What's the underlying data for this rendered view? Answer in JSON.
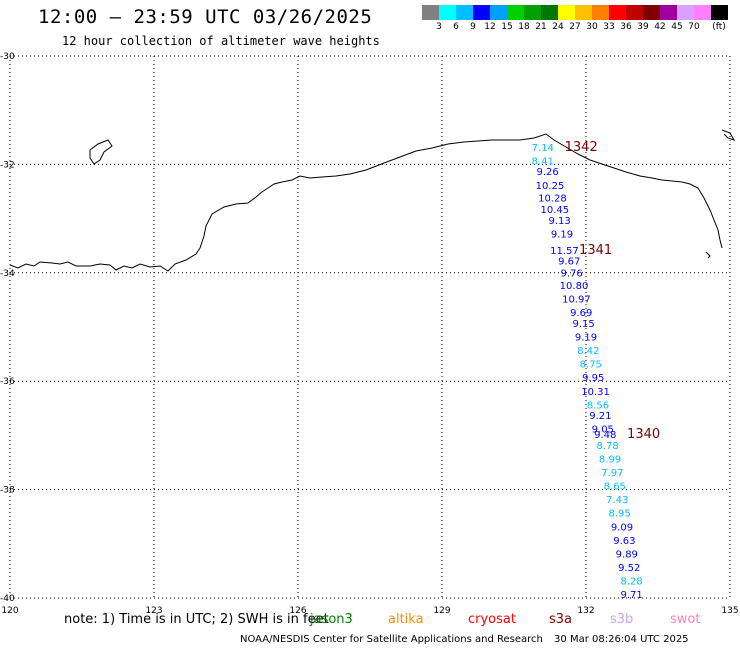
{
  "title": "12:00 – 23:59 UTC 03/26/2025",
  "subtitle": "12 hour collection of altimeter wave heights",
  "color_scale": {
    "labels": [
      "3",
      "6",
      "9",
      "12",
      "15",
      "18",
      "21",
      "24",
      "27",
      "30",
      "33",
      "36",
      "39",
      "42",
      "45",
      "70"
    ],
    "unit": "(ft)",
    "colors": [
      "#808080",
      "#00ffff",
      "#00bfff",
      "#0000ff",
      "#00a0ff",
      "#00d000",
      "#00a000",
      "#007800",
      "#ffff00",
      "#ffc000",
      "#ff8000",
      "#ff0000",
      "#c00000",
      "#800000",
      "#a000a0",
      "#d8a0ff",
      "#ff80ff",
      "#000000"
    ]
  },
  "map": {
    "lon_range": [
      120,
      135
    ],
    "lat_range": [
      -40,
      -30
    ],
    "lon_ticks": [
      "120",
      "123",
      "126",
      "129",
      "132",
      "135"
    ],
    "lat_ticks": [
      "-30",
      "-32",
      "-34",
      "-36",
      "-38",
      "-40"
    ],
    "grid": "dotted"
  },
  "passes": [
    {
      "id": "1342",
      "lon": 131.9,
      "lat": -31.75
    },
    {
      "id": "1341",
      "lon": 132.2,
      "lat": -33.65
    },
    {
      "id": "1340",
      "lon": 133.2,
      "lat": -37.05
    }
  ],
  "swh_points": [
    {
      "value": "7.14",
      "lon": 131.1,
      "lat": -31.75,
      "color": "#00bfff"
    },
    {
      "value": "8.41",
      "lon": 131.1,
      "lat": -32.0,
      "color": "#00bfff"
    },
    {
      "value": "9.26",
      "lon": 131.2,
      "lat": -32.2,
      "color": "#0000ff"
    },
    {
      "value": "10.25",
      "lon": 131.25,
      "lat": -32.45,
      "color": "#0000ff"
    },
    {
      "value": "10.28",
      "lon": 131.3,
      "lat": -32.68,
      "color": "#0000ff"
    },
    {
      "value": "10.45",
      "lon": 131.35,
      "lat": -32.9,
      "color": "#0000ff"
    },
    {
      "value": "9.13",
      "lon": 131.45,
      "lat": -33.1,
      "color": "#0000ff"
    },
    {
      "value": "9.19",
      "lon": 131.5,
      "lat": -33.35,
      "color": "#0000ff"
    },
    {
      "value": "11.57",
      "lon": 131.55,
      "lat": -33.65,
      "color": "#0000ff"
    },
    {
      "value": "9.67",
      "lon": 131.65,
      "lat": -33.85,
      "color": "#0000ff"
    },
    {
      "value": "9.76",
      "lon": 131.7,
      "lat": -34.07,
      "color": "#0000ff"
    },
    {
      "value": "10.80",
      "lon": 131.75,
      "lat": -34.3,
      "color": "#0000ff"
    },
    {
      "value": "10.97",
      "lon": 131.8,
      "lat": -34.55,
      "color": "#0000ff"
    },
    {
      "value": "9.69",
      "lon": 131.9,
      "lat": -34.8,
      "color": "#0000ff"
    },
    {
      "value": "9.15",
      "lon": 131.95,
      "lat": -35.0,
      "color": "#0000ff"
    },
    {
      "value": "9.19",
      "lon": 132.0,
      "lat": -35.25,
      "color": "#0000ff"
    },
    {
      "value": "8.42",
      "lon": 132.05,
      "lat": -35.5,
      "color": "#00bfff"
    },
    {
      "value": "8.75",
      "lon": 132.1,
      "lat": -35.75,
      "color": "#00bfff"
    },
    {
      "value": "9.95",
      "lon": 132.15,
      "lat": -36.0,
      "color": "#0000ff"
    },
    {
      "value": "10.31",
      "lon": 132.2,
      "lat": -36.25,
      "color": "#0000ff"
    },
    {
      "value": "8.56",
      "lon": 132.25,
      "lat": -36.5,
      "color": "#00bfff"
    },
    {
      "value": "9.21",
      "lon": 132.3,
      "lat": -36.7,
      "color": "#0000ff"
    },
    {
      "value": "9.05",
      "lon": 132.35,
      "lat": -36.95,
      "color": "#0000ff"
    },
    {
      "value": "9.48",
      "lon": 132.4,
      "lat": -37.05,
      "color": "#0000ff"
    },
    {
      "value": "8.78",
      "lon": 132.45,
      "lat": -37.25,
      "color": "#00bfff"
    },
    {
      "value": "8.99",
      "lon": 132.5,
      "lat": -37.5,
      "color": "#00bfff"
    },
    {
      "value": "7.97",
      "lon": 132.55,
      "lat": -37.75,
      "color": "#00bfff"
    },
    {
      "value": "8.65",
      "lon": 132.6,
      "lat": -38.0,
      "color": "#00bfff"
    },
    {
      "value": "7.43",
      "lon": 132.65,
      "lat": -38.25,
      "color": "#00bfff"
    },
    {
      "value": "8.95",
      "lon": 132.7,
      "lat": -38.5,
      "color": "#00bfff"
    },
    {
      "value": "9.09",
      "lon": 132.75,
      "lat": -38.75,
      "color": "#0000ff"
    },
    {
      "value": "9.63",
      "lon": 132.8,
      "lat": -39.0,
      "color": "#0000ff"
    },
    {
      "value": "9.89",
      "lon": 132.85,
      "lat": -39.25,
      "color": "#0000ff"
    },
    {
      "value": "9.52",
      "lon": 132.9,
      "lat": -39.5,
      "color": "#0000ff"
    },
    {
      "value": "8.28",
      "lon": 132.95,
      "lat": -39.75,
      "color": "#00bfff"
    },
    {
      "value": "9.71",
      "lon": 132.95,
      "lat": -40.0,
      "color": "#0000ff"
    }
  ],
  "footer": {
    "note": "note: 1) Time is in UTC; 2) SWH is in feet",
    "missions": [
      {
        "name": "jason3",
        "color": "#008000"
      },
      {
        "name": "altika",
        "color": "#ff8c00"
      },
      {
        "name": "cryosat",
        "color": "#ff0000"
      },
      {
        "name": "s3a",
        "color": "#800000"
      },
      {
        "name": "s3b",
        "color": "#c8a8ff"
      },
      {
        "name": "swot",
        "color": "#ff80c0"
      }
    ],
    "credit": "NOAA/NESDIS Center for Satellite Applications and Research",
    "timestamp": "30 Mar 08:26:04 UTC 2025"
  }
}
